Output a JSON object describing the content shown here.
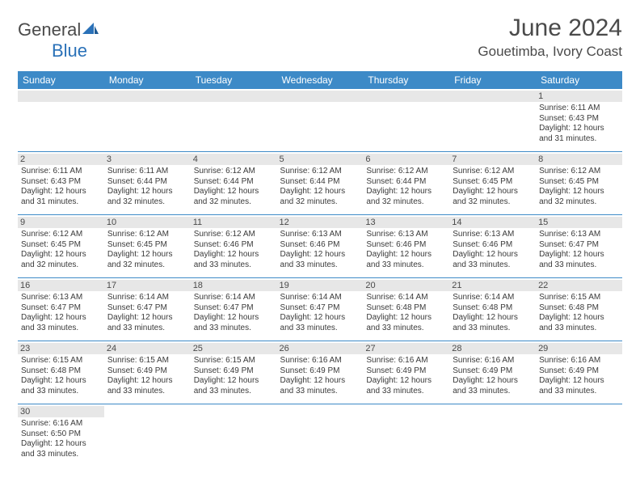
{
  "brand": {
    "part1": "General",
    "part2": "Blue"
  },
  "title": "June 2024",
  "location": "Gouetimba, Ivory Coast",
  "colors": {
    "header_bg": "#3d8ac7",
    "header_text": "#ffffff",
    "daynum_bg": "#e7e7e7",
    "cell_border": "#3d8ac7",
    "text": "#3a3a3a"
  },
  "weekdays": [
    "Sunday",
    "Monday",
    "Tuesday",
    "Wednesday",
    "Thursday",
    "Friday",
    "Saturday"
  ],
  "calendar": {
    "type": "table",
    "columns": 7,
    "rows": [
      [
        {
          "day": "",
          "lines": [
            "",
            "",
            "",
            ""
          ]
        },
        {
          "day": "",
          "lines": [
            "",
            "",
            "",
            ""
          ]
        },
        {
          "day": "",
          "lines": [
            "",
            "",
            "",
            ""
          ]
        },
        {
          "day": "",
          "lines": [
            "",
            "",
            "",
            ""
          ]
        },
        {
          "day": "",
          "lines": [
            "",
            "",
            "",
            ""
          ]
        },
        {
          "day": "",
          "lines": [
            "",
            "",
            "",
            ""
          ]
        },
        {
          "day": "1",
          "lines": [
            "Sunrise: 6:11 AM",
            "Sunset: 6:43 PM",
            "Daylight: 12 hours",
            "and 31 minutes."
          ]
        }
      ],
      [
        {
          "day": "2",
          "lines": [
            "Sunrise: 6:11 AM",
            "Sunset: 6:43 PM",
            "Daylight: 12 hours",
            "and 31 minutes."
          ]
        },
        {
          "day": "3",
          "lines": [
            "Sunrise: 6:11 AM",
            "Sunset: 6:44 PM",
            "Daylight: 12 hours",
            "and 32 minutes."
          ]
        },
        {
          "day": "4",
          "lines": [
            "Sunrise: 6:12 AM",
            "Sunset: 6:44 PM",
            "Daylight: 12 hours",
            "and 32 minutes."
          ]
        },
        {
          "day": "5",
          "lines": [
            "Sunrise: 6:12 AM",
            "Sunset: 6:44 PM",
            "Daylight: 12 hours",
            "and 32 minutes."
          ]
        },
        {
          "day": "6",
          "lines": [
            "Sunrise: 6:12 AM",
            "Sunset: 6:44 PM",
            "Daylight: 12 hours",
            "and 32 minutes."
          ]
        },
        {
          "day": "7",
          "lines": [
            "Sunrise: 6:12 AM",
            "Sunset: 6:45 PM",
            "Daylight: 12 hours",
            "and 32 minutes."
          ]
        },
        {
          "day": "8",
          "lines": [
            "Sunrise: 6:12 AM",
            "Sunset: 6:45 PM",
            "Daylight: 12 hours",
            "and 32 minutes."
          ]
        }
      ],
      [
        {
          "day": "9",
          "lines": [
            "Sunrise: 6:12 AM",
            "Sunset: 6:45 PM",
            "Daylight: 12 hours",
            "and 32 minutes."
          ]
        },
        {
          "day": "10",
          "lines": [
            "Sunrise: 6:12 AM",
            "Sunset: 6:45 PM",
            "Daylight: 12 hours",
            "and 32 minutes."
          ]
        },
        {
          "day": "11",
          "lines": [
            "Sunrise: 6:12 AM",
            "Sunset: 6:46 PM",
            "Daylight: 12 hours",
            "and 33 minutes."
          ]
        },
        {
          "day": "12",
          "lines": [
            "Sunrise: 6:13 AM",
            "Sunset: 6:46 PM",
            "Daylight: 12 hours",
            "and 33 minutes."
          ]
        },
        {
          "day": "13",
          "lines": [
            "Sunrise: 6:13 AM",
            "Sunset: 6:46 PM",
            "Daylight: 12 hours",
            "and 33 minutes."
          ]
        },
        {
          "day": "14",
          "lines": [
            "Sunrise: 6:13 AM",
            "Sunset: 6:46 PM",
            "Daylight: 12 hours",
            "and 33 minutes."
          ]
        },
        {
          "day": "15",
          "lines": [
            "Sunrise: 6:13 AM",
            "Sunset: 6:47 PM",
            "Daylight: 12 hours",
            "and 33 minutes."
          ]
        }
      ],
      [
        {
          "day": "16",
          "lines": [
            "Sunrise: 6:13 AM",
            "Sunset: 6:47 PM",
            "Daylight: 12 hours",
            "and 33 minutes."
          ]
        },
        {
          "day": "17",
          "lines": [
            "Sunrise: 6:14 AM",
            "Sunset: 6:47 PM",
            "Daylight: 12 hours",
            "and 33 minutes."
          ]
        },
        {
          "day": "18",
          "lines": [
            "Sunrise: 6:14 AM",
            "Sunset: 6:47 PM",
            "Daylight: 12 hours",
            "and 33 minutes."
          ]
        },
        {
          "day": "19",
          "lines": [
            "Sunrise: 6:14 AM",
            "Sunset: 6:47 PM",
            "Daylight: 12 hours",
            "and 33 minutes."
          ]
        },
        {
          "day": "20",
          "lines": [
            "Sunrise: 6:14 AM",
            "Sunset: 6:48 PM",
            "Daylight: 12 hours",
            "and 33 minutes."
          ]
        },
        {
          "day": "21",
          "lines": [
            "Sunrise: 6:14 AM",
            "Sunset: 6:48 PM",
            "Daylight: 12 hours",
            "and 33 minutes."
          ]
        },
        {
          "day": "22",
          "lines": [
            "Sunrise: 6:15 AM",
            "Sunset: 6:48 PM",
            "Daylight: 12 hours",
            "and 33 minutes."
          ]
        }
      ],
      [
        {
          "day": "23",
          "lines": [
            "Sunrise: 6:15 AM",
            "Sunset: 6:48 PM",
            "Daylight: 12 hours",
            "and 33 minutes."
          ]
        },
        {
          "day": "24",
          "lines": [
            "Sunrise: 6:15 AM",
            "Sunset: 6:49 PM",
            "Daylight: 12 hours",
            "and 33 minutes."
          ]
        },
        {
          "day": "25",
          "lines": [
            "Sunrise: 6:15 AM",
            "Sunset: 6:49 PM",
            "Daylight: 12 hours",
            "and 33 minutes."
          ]
        },
        {
          "day": "26",
          "lines": [
            "Sunrise: 6:16 AM",
            "Sunset: 6:49 PM",
            "Daylight: 12 hours",
            "and 33 minutes."
          ]
        },
        {
          "day": "27",
          "lines": [
            "Sunrise: 6:16 AM",
            "Sunset: 6:49 PM",
            "Daylight: 12 hours",
            "and 33 minutes."
          ]
        },
        {
          "day": "28",
          "lines": [
            "Sunrise: 6:16 AM",
            "Sunset: 6:49 PM",
            "Daylight: 12 hours",
            "and 33 minutes."
          ]
        },
        {
          "day": "29",
          "lines": [
            "Sunrise: 6:16 AM",
            "Sunset: 6:49 PM",
            "Daylight: 12 hours",
            "and 33 minutes."
          ]
        }
      ],
      [
        {
          "day": "30",
          "lines": [
            "Sunrise: 6:16 AM",
            "Sunset: 6:50 PM",
            "Daylight: 12 hours",
            "and 33 minutes."
          ]
        },
        {
          "day": "",
          "lines": [
            "",
            "",
            "",
            ""
          ]
        },
        {
          "day": "",
          "lines": [
            "",
            "",
            "",
            ""
          ]
        },
        {
          "day": "",
          "lines": [
            "",
            "",
            "",
            ""
          ]
        },
        {
          "day": "",
          "lines": [
            "",
            "",
            "",
            ""
          ]
        },
        {
          "day": "",
          "lines": [
            "",
            "",
            "",
            ""
          ]
        },
        {
          "day": "",
          "lines": [
            "",
            "",
            "",
            ""
          ]
        }
      ]
    ]
  }
}
